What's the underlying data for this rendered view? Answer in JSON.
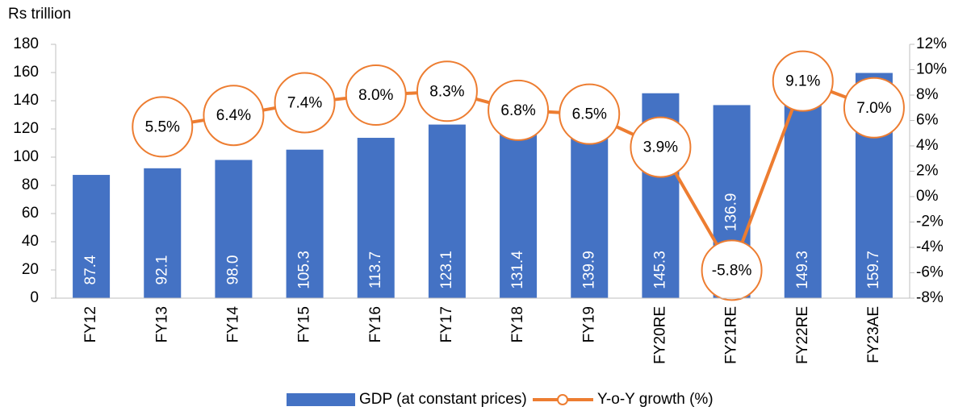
{
  "chart_data": {
    "type": "bar_line",
    "y_axis_label": "Rs trillion",
    "categories": [
      "FY12",
      "FY13",
      "FY14",
      "FY15",
      "FY16",
      "FY17",
      "FY18",
      "FY19",
      "FY20RE",
      "FY21RE",
      "FY22RE",
      "FY23AE"
    ],
    "series": [
      {
        "name": "GDP (at constant prices)",
        "type": "bar",
        "color": "#4472c4",
        "values": [
          87.4,
          92.1,
          98,
          105.3,
          113.7,
          123.1,
          131.4,
          139.9,
          145.3,
          136.9,
          149.3,
          159.7
        ],
        "value_labels": [
          "87.4",
          "92.1",
          "98.0",
          "105.3",
          "113.7",
          "123.1",
          "131.4",
          "139.9",
          "145.3",
          "136.9",
          "149.3",
          "159.7"
        ]
      },
      {
        "name": "Y-o-Y growth (%)",
        "type": "line",
        "axis": "y2",
        "color": "#ed7d31",
        "values": [
          null,
          5.5,
          6.4,
          7.4,
          8,
          8.3,
          6.8,
          6.5,
          3.9,
          -5.8,
          9.1,
          7
        ],
        "value_labels": [
          null,
          "5.5%",
          "6.4%",
          "7.4%",
          "8.0%",
          "8.3%",
          "6.8%",
          "6.5%",
          "3.9%",
          "-5.8%",
          "9.1%",
          "7.0%"
        ]
      }
    ],
    "ylim": [
      0,
      180
    ],
    "yticks": [
      0,
      20,
      40,
      60,
      80,
      100,
      120,
      140,
      160,
      180
    ],
    "y2lim": [
      -8,
      12
    ],
    "y2ticks": [
      {
        "value": -8,
        "label": "-8%"
      },
      {
        "value": -6,
        "label": "-6%"
      },
      {
        "value": -4,
        "label": "-4%"
      },
      {
        "value": -2,
        "label": "-2%"
      },
      {
        "value": 0,
        "label": "0%"
      },
      {
        "value": 2,
        "label": "2%"
      },
      {
        "value": 4,
        "label": "4%"
      },
      {
        "value": 6,
        "label": "6%"
      },
      {
        "value": 8,
        "label": "8%"
      },
      {
        "value": 10,
        "label": "10%"
      },
      {
        "value": 12,
        "label": "12%"
      }
    ],
    "legend": "bottom"
  }
}
